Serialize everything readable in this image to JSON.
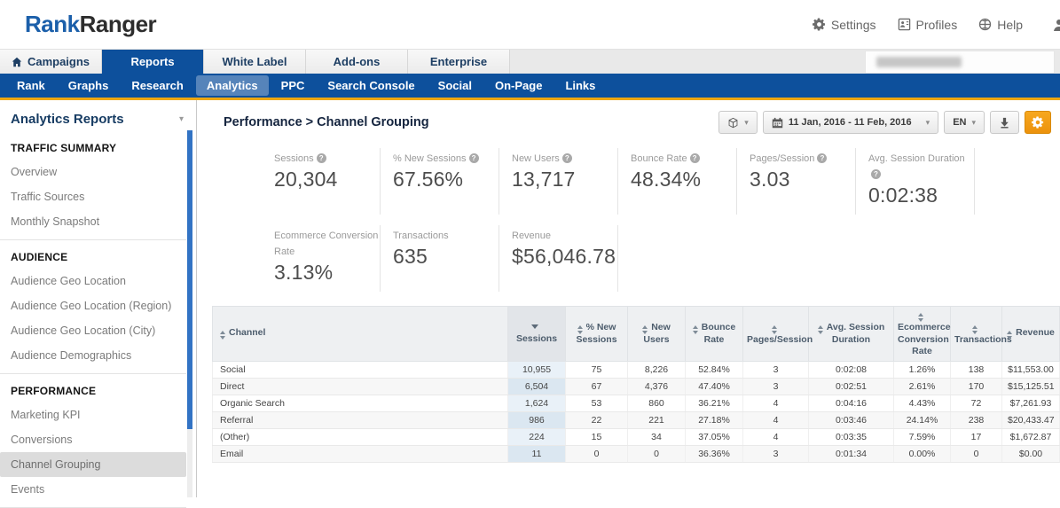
{
  "header": {
    "logo": {
      "part1": "Rank",
      "part2": "Ranger"
    },
    "utility": {
      "settings": "Settings",
      "profiles": "Profiles",
      "help": "Help"
    }
  },
  "tabs": {
    "campaigns": "Campaigns",
    "reports": "Reports",
    "white_label": "White Label",
    "addons": "Add-ons",
    "enterprise": "Enterprise",
    "active": "Reports"
  },
  "subnav": {
    "items": [
      "Rank",
      "Graphs",
      "Research",
      "Analytics",
      "PPC",
      "Search Console",
      "Social",
      "On-Page",
      "Links"
    ],
    "active": "Analytics"
  },
  "sidebar": {
    "title": "Analytics Reports",
    "active_item": "Channel Grouping",
    "sections": [
      {
        "heading": "TRAFFIC SUMMARY",
        "items": [
          "Overview",
          "Traffic Sources",
          "Monthly Snapshot"
        ]
      },
      {
        "heading": "AUDIENCE",
        "items": [
          "Audience Geo Location",
          "Audience Geo Location (Region)",
          "Audience Geo Location (City)",
          "Audience Demographics"
        ]
      },
      {
        "heading": "PERFORMANCE",
        "items": [
          "Marketing KPI",
          "Conversions",
          "Channel Grouping",
          "Events"
        ]
      }
    ]
  },
  "content": {
    "title": "Performance > Channel Grouping",
    "toolbar": {
      "date_range": "11 Jan, 2016 - 11 Feb, 2016",
      "language": "EN"
    },
    "stats_row1": [
      {
        "label": "Sessions",
        "value": "20,304",
        "help": true
      },
      {
        "label": "% New Sessions",
        "value": "67.56%",
        "help": true
      },
      {
        "label": "New Users",
        "value": "13,717",
        "help": true
      },
      {
        "label": "Bounce Rate",
        "value": "48.34%",
        "help": true
      },
      {
        "label": "Pages/Session",
        "value": "3.03",
        "help": true
      },
      {
        "label": "Avg. Session Duration",
        "value": "0:02:38",
        "help": true
      }
    ],
    "stats_row2": [
      {
        "label": "Ecommerce Conversion Rate",
        "value": "3.13%",
        "help": false
      },
      {
        "label": "Transactions",
        "value": "635",
        "help": false
      },
      {
        "label": "Revenue",
        "value": "$56,046.78",
        "help": false
      }
    ],
    "table": {
      "columns": [
        "Channel",
        "Sessions",
        "% New Sessions",
        "New Users",
        "Bounce Rate",
        "Pages/Session",
        "Avg. Session Duration",
        "Ecommerce Conversion Rate",
        "Transactions",
        "Revenue"
      ],
      "sorted_column": "Sessions",
      "sort_direction": "desc",
      "rows": [
        [
          "Social",
          "10,955",
          "75",
          "8,226",
          "52.84%",
          "3",
          "0:02:08",
          "1.26%",
          "138",
          "$11,553.00"
        ],
        [
          "Direct",
          "6,504",
          "67",
          "4,376",
          "47.40%",
          "3",
          "0:02:51",
          "2.61%",
          "170",
          "$15,125.51"
        ],
        [
          "Organic Search",
          "1,624",
          "53",
          "860",
          "36.21%",
          "4",
          "0:04:16",
          "4.43%",
          "72",
          "$7,261.93"
        ],
        [
          "Referral",
          "986",
          "22",
          "221",
          "27.18%",
          "4",
          "0:03:46",
          "24.14%",
          "238",
          "$20,433.47"
        ],
        [
          "(Other)",
          "224",
          "15",
          "34",
          "37.05%",
          "4",
          "0:03:35",
          "7.59%",
          "17",
          "$1,672.87"
        ],
        [
          "Email",
          "11",
          "0",
          "0",
          "36.36%",
          "3",
          "0:01:34",
          "0.00%",
          "0",
          "$0.00"
        ]
      ]
    }
  },
  "colors": {
    "nav_blue": "#0d509c",
    "accent_orange": "#eda712",
    "gear_button_orange": "#f39c12",
    "logo_blue": "#1b5faa",
    "sessions_column_blue": "#e9f1f8"
  }
}
